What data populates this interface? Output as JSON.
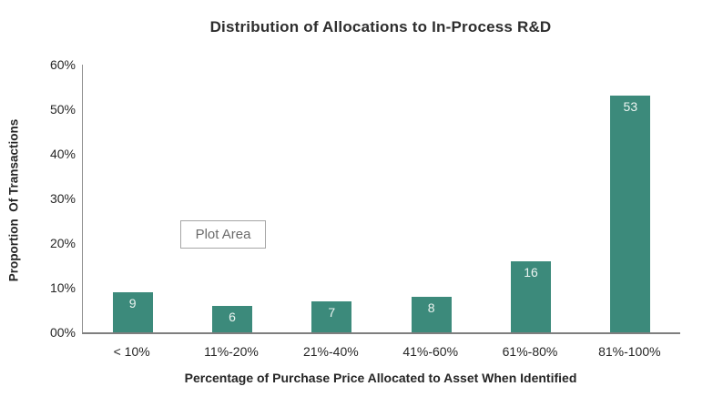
{
  "chart_data": {
    "type": "bar",
    "title": "Distribution of Allocations to In-Process R&D",
    "categories": [
      "< 10%",
      "11%-20%",
      "21%-40%",
      "41%-60%",
      "61%-80%",
      "81%-100%"
    ],
    "values": [
      9,
      6,
      7,
      8,
      16,
      53
    ],
    "bar_labels": [
      "9",
      "6",
      "7",
      "8",
      "16",
      "53"
    ],
    "xlabel": "Percentage of Purchase Price Allocated to Asset When Identified",
    "ylabel": "Proportion  Of Transactions",
    "ylim": [
      0,
      60
    ],
    "y_tick_labels": [
      "60%",
      "50%",
      "40%",
      "30%",
      "20%",
      "10%",
      "00%"
    ],
    "grid": false,
    "legend_position": "none",
    "colors": {
      "bar": "#3c8a7b",
      "bar_label_text": "#ecf4f1",
      "axis_line": "#7f7f7f",
      "title_text": "#2e2e2e",
      "tick_text": "#262626",
      "plot_area_box_border": "#a6a6a6",
      "plot_area_box_text": "#6b6b6b"
    }
  },
  "overlay": {
    "plot_area_label": "Plot Area"
  }
}
